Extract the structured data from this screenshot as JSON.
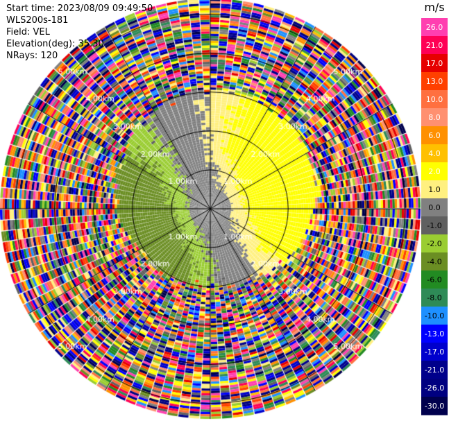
{
  "header": {
    "start_time": "Start time: 2023/08/09 09:49:50",
    "instrument": "WLS200s-181",
    "field": "Field: VEL",
    "elevation": "Elevation(deg): 35.30",
    "nrays": "NRays: 120"
  },
  "chart_data": {
    "type": "ppi",
    "field": "VEL",
    "nrays": 120,
    "range_rings_km": [
      1.0,
      2.0,
      3.0,
      4.0,
      5.0
    ],
    "range_ring_labels": [
      "1.00km",
      "2.00km",
      "3.00km",
      "4.00km",
      "5.00km"
    ],
    "max_range_km": 5.4,
    "colorbar": {
      "unit": "m/s",
      "ticks": [
        "26.0",
        "21.0",
        "17.0",
        "13.0",
        "10.0",
        "8.0",
        "6.0",
        "4.0",
        "2.0",
        "1.0",
        "0.0",
        "-1.0",
        "-2.0",
        "-4.0",
        "-6.0",
        "-8.0",
        "-10.0",
        "-13.0",
        "-17.0",
        "-21.0",
        "-26.0",
        "-30.0"
      ],
      "colors": [
        "#ff3fb0",
        "#ff0055",
        "#e60000",
        "#ff4000",
        "#ff7040",
        "#ff9070",
        "#ff9000",
        "#ffc000",
        "#ffff00",
        "#fff080",
        "#808080",
        "#606060",
        "#9acd32",
        "#6b8e23",
        "#228b22",
        "#2e8b57",
        "#1e90ff",
        "#0000ff",
        "#0000cd",
        "#00008b",
        "#000080",
        "#00004d"
      ]
    }
  }
}
